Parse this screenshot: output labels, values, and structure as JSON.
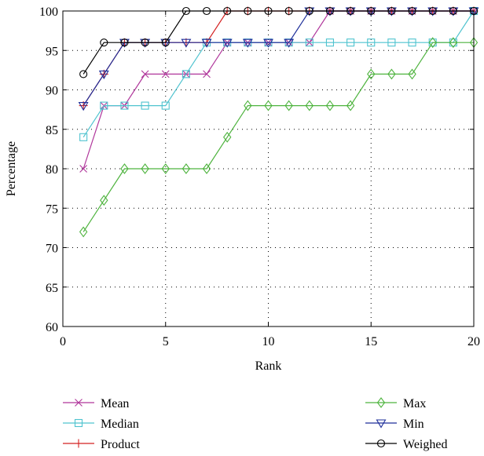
{
  "chart_data": {
    "type": "line",
    "xlabel": "Rank",
    "ylabel": "Percentage",
    "xlim": [
      0,
      20
    ],
    "ylim": [
      60,
      100
    ],
    "xticks": [
      0,
      5,
      10,
      15,
      20
    ],
    "yticks": [
      60,
      65,
      70,
      75,
      80,
      85,
      90,
      95,
      100
    ],
    "grid": true,
    "legend_position": "below",
    "x": [
      1,
      2,
      3,
      4,
      5,
      6,
      7,
      8,
      9,
      10,
      11,
      12,
      13,
      14,
      15,
      16,
      17,
      18,
      19,
      20
    ],
    "series": [
      {
        "name": "Mean",
        "color": "#b0369b",
        "marker": "x",
        "values": [
          80,
          88,
          88,
          92,
          92,
          92,
          92,
          96,
          96,
          96,
          96,
          96,
          100,
          100,
          100,
          100,
          100,
          100,
          100,
          100
        ]
      },
      {
        "name": "Median",
        "color": "#4fc3cf",
        "marker": "square",
        "values": [
          84,
          88,
          88,
          88,
          88,
          92,
          96,
          96,
          96,
          96,
          96,
          96,
          96,
          96,
          96,
          96,
          96,
          96,
          96,
          100
        ]
      },
      {
        "name": "Product",
        "color": "#d42020",
        "marker": "plus",
        "values": [
          88,
          92,
          96,
          96,
          96,
          96,
          96,
          100,
          100,
          100,
          100,
          100,
          100,
          100,
          100,
          100,
          100,
          100,
          100,
          100
        ]
      },
      {
        "name": "Max",
        "color": "#4db33d",
        "marker": "diamond",
        "values": [
          72,
          76,
          80,
          80,
          80,
          80,
          80,
          84,
          88,
          88,
          88,
          88,
          88,
          88,
          92,
          92,
          92,
          96,
          96,
          96
        ]
      },
      {
        "name": "Min",
        "color": "#1e2f9a",
        "marker": "triangle-down",
        "values": [
          88,
          92,
          96,
          96,
          96,
          96,
          96,
          96,
          96,
          96,
          96,
          100,
          100,
          100,
          100,
          100,
          100,
          100,
          100,
          100
        ]
      },
      {
        "name": "Weighed",
        "color": "#000000",
        "marker": "circle",
        "values": [
          92,
          96,
          96,
          96,
          96,
          100,
          100,
          100,
          100,
          100,
          100,
          100,
          100,
          100,
          100,
          100,
          100,
          100,
          100,
          100
        ]
      }
    ]
  }
}
